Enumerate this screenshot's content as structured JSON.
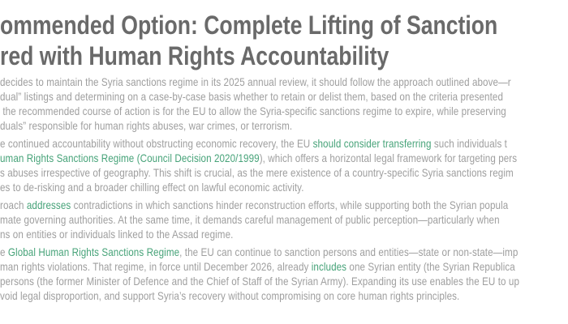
{
  "colors": {
    "heading": "#6a6a6a",
    "body": "#9e9e9e",
    "accent_green": "#47a379"
  },
  "heading": {
    "lines": [
      "ommended Option: Complete Lifting of Sanction",
      "red with Human Rights Accountability"
    ]
  },
  "paragraphs": [
    {
      "lines": [
        [
          {
            "t": "decides to maintain the Syria sanctions regime in its 2025 annual review, it should follow the approach outlined above—r",
            "c": "body"
          }
        ],
        [
          {
            "t": "dual” listings and determining on a case-by-case basis whether to retain or delist them, based on the criteria presented",
            "c": "body"
          }
        ],
        [
          {
            "t": " the recommended course of action is for the EU to allow the Syria-specific sanctions regime to expire, while preserving",
            "c": "body"
          }
        ],
        [
          {
            "t": "duals” responsible for human rights abuses, war crimes, or terrorism.",
            "c": "body"
          }
        ]
      ]
    },
    {
      "lines": [
        [
          {
            "t": "e continued accountability without obstructing economic recovery, the EU ",
            "c": "body"
          },
          {
            "t": "should consider transferring",
            "c": "green"
          },
          {
            "t": " such individuals t",
            "c": "body"
          }
        ],
        [
          {
            "t": "uman Rights Sanctions Regime (Council Decision 2020/1999",
            "c": "green"
          },
          {
            "t": "), which offers a horizontal legal framework for targeting pers",
            "c": "body"
          }
        ],
        [
          {
            "t": "s abuses irrespective of geography. This shift is crucial, as the mere existence of a country-specific Syria sanctions regim",
            "c": "body"
          }
        ],
        [
          {
            "t": "es to de-risking and a broader chilling effect on lawful economic activity.",
            "c": "body"
          }
        ]
      ]
    },
    {
      "lines": [
        [
          {
            "t": "roach ",
            "c": "body"
          },
          {
            "t": "addresses",
            "c": "green"
          },
          {
            "t": " contradictions in which sanctions hinder reconstruction efforts, while supporting both the Syrian popula",
            "c": "body"
          }
        ],
        [
          {
            "t": "mate governing authorities. At the same time, it demands careful management of public perception—particularly when",
            "c": "body"
          }
        ],
        [
          {
            "t": "ns on entities or individuals linked to the Assad regime.",
            "c": "body"
          }
        ]
      ]
    },
    {
      "lines": [
        [
          {
            "t": "e ",
            "c": "body"
          },
          {
            "t": "Global Human Rights Sanctions Regime",
            "c": "green"
          },
          {
            "t": ", the EU can continue to sanction persons and entities—state or non-state—imp",
            "c": "body"
          }
        ],
        [
          {
            "t": "man rights violations. That regime, in force until December 2026, already ",
            "c": "body"
          },
          {
            "t": "includes",
            "c": "green"
          },
          {
            "t": " one Syrian entity (the Syrian Republica",
            "c": "body"
          }
        ],
        [
          {
            "t": "persons (the former Minister of Defence and the Chief of Staff of the Syrian Army). Expanding its use enables the EU to up",
            "c": "body"
          }
        ],
        [
          {
            "t": "void legal disproportion, and support Syria’s recovery without compromising on core human rights principles.",
            "c": "body"
          }
        ]
      ]
    }
  ]
}
